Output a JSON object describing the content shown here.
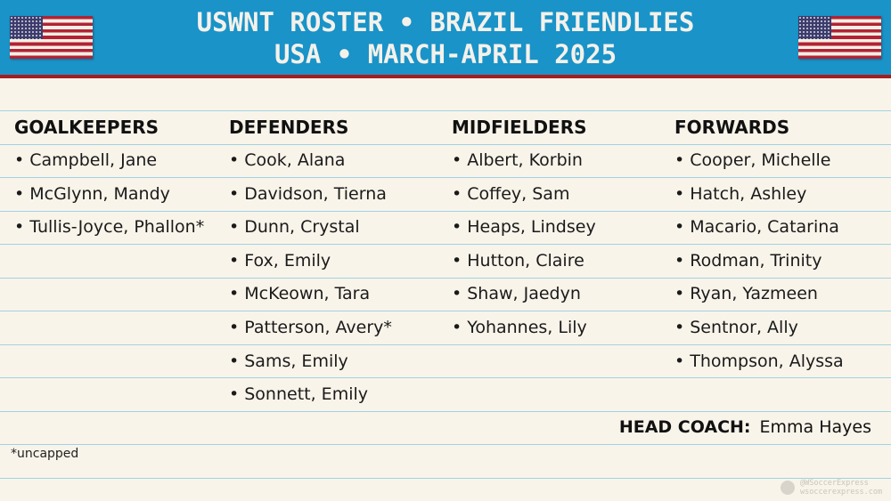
{
  "header": {
    "title_line1": "USWNT ROSTER • BRAZIL FRIENDLIES",
    "title_line2": "USA • MARCH-APRIL 2025",
    "colors": {
      "bar": "#1993c8",
      "accent": "#a51d1d"
    }
  },
  "columns": [
    {
      "heading": "GOALKEEPERS",
      "players": [
        "• Campbell, Jane",
        "• McGlynn, Mandy",
        "• Tullis-Joyce, Phallon*"
      ]
    },
    {
      "heading": "DEFENDERS",
      "players": [
        "• Cook, Alana",
        "• Davidson, Tierna",
        "• Dunn, Crystal",
        "• Fox, Emily",
        "• McKeown, Tara",
        "• Patterson, Avery*",
        "• Sams, Emily",
        "• Sonnett, Emily"
      ]
    },
    {
      "heading": "MIDFIELDERS",
      "players": [
        "• Albert, Korbin",
        "• Coffey, Sam",
        "• Heaps, Lindsey",
        "• Hutton, Claire",
        "• Shaw, Jaedyn",
        "• Yohannes, Lily"
      ]
    },
    {
      "heading": "FORWARDS",
      "players": [
        "• Cooper, Michelle",
        "• Hatch, Ashley",
        "• Macario, Catarina",
        "• Rodman, Trinity",
        "• Ryan, Yazmeen",
        "• Sentnor, Ally",
        "• Thompson, Alyssa"
      ]
    }
  ],
  "coach": {
    "label": "HEAD COACH:",
    "name": "Emma Hayes"
  },
  "footnote": "*uncapped",
  "watermark": {
    "handle": "@WSoccerExpress",
    "site": "wsoccerexpress.com"
  }
}
